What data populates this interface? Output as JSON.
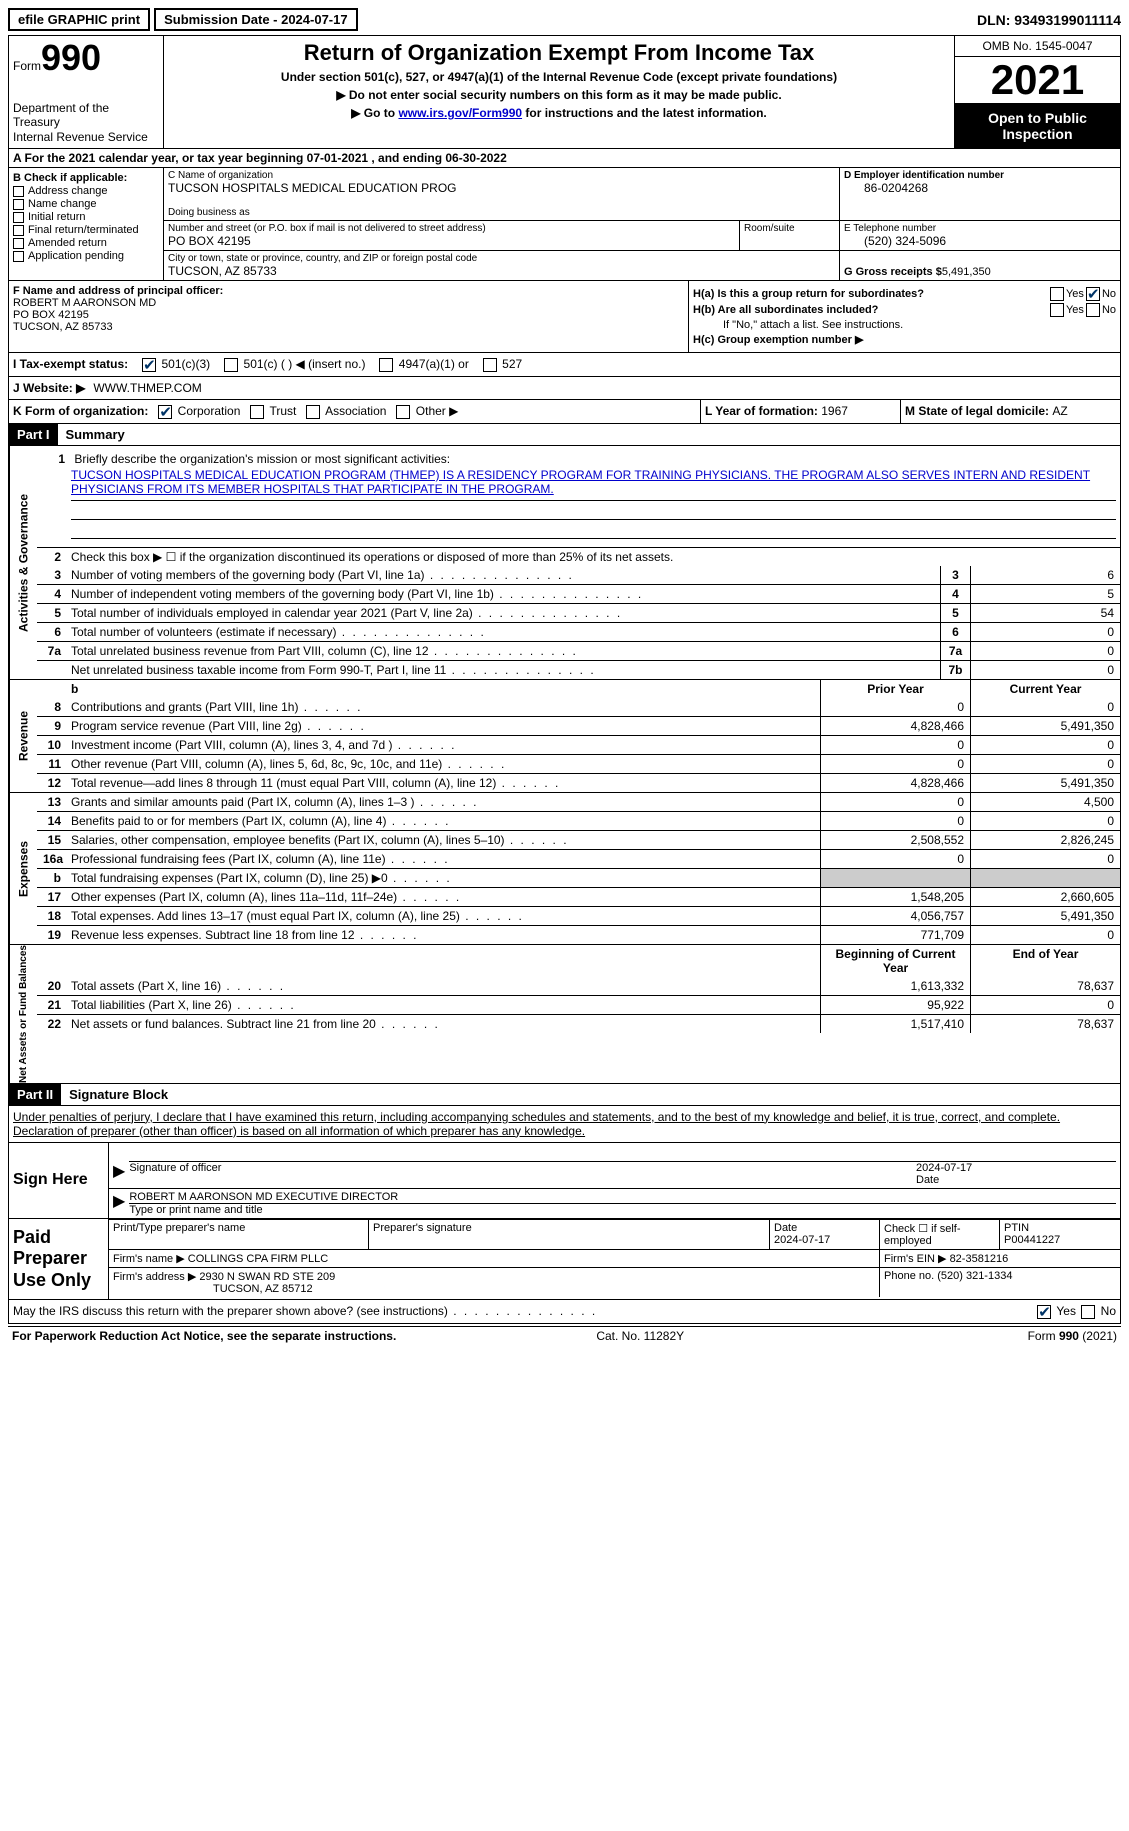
{
  "topbar": {
    "efile": "efile GRAPHIC print",
    "submission_label": "Submission Date - 2024-07-17",
    "dln_label": "DLN: 93493199011114"
  },
  "header": {
    "form_label": "Form",
    "form_number": "990",
    "dept": "Department of the Treasury\nInternal Revenue Service",
    "title": "Return of Organization Exempt From Income Tax",
    "subtitle": "Under section 501(c), 527, or 4947(a)(1) of the Internal Revenue Code (except private foundations)",
    "instr1": "▶ Do not enter social security numbers on this form as it may be made public.",
    "instr2_pre": "▶ Go to ",
    "instr2_link": "www.irs.gov/Form990",
    "instr2_post": " for instructions and the latest information.",
    "omb": "OMB No. 1545-0047",
    "year": "2021",
    "open": "Open to Public Inspection"
  },
  "section_a": "A For the 2021 calendar year, or tax year beginning 07-01-2021   , and ending 06-30-2022",
  "section_b": {
    "label": "B Check if applicable:",
    "items": [
      "Address change",
      "Name change",
      "Initial return",
      "Final return/terminated",
      "Amended return",
      "Application pending"
    ]
  },
  "section_c": {
    "name_label": "C Name of organization",
    "name": "TUCSON HOSPITALS MEDICAL EDUCATION PROG",
    "dba_label": "Doing business as",
    "dba": "",
    "street_label": "Number and street (or P.O. box if mail is not delivered to street address)",
    "street": "PO BOX 42195",
    "room_label": "Room/suite",
    "room": "",
    "city_label": "City or town, state or province, country, and ZIP or foreign postal code",
    "city": "TUCSON, AZ  85733"
  },
  "section_d": {
    "ein_label": "D Employer identification number",
    "ein": "86-0204268",
    "phone_label": "E Telephone number",
    "phone": "(520) 324-5096",
    "gross_label": "G Gross receipts $ ",
    "gross": "5,491,350"
  },
  "section_f": {
    "label": "F Name and address of principal officer:",
    "name": "ROBERT M AARONSON MD",
    "street": "PO BOX 42195",
    "city": "TUCSON, AZ  85733"
  },
  "section_h": {
    "ha_label": "H(a)  Is this a group return for subordinates?",
    "hb_label": "H(b)  Are all subordinates included?",
    "hb_note": "If \"No,\" attach a list. See instructions.",
    "hc_label": "H(c)  Group exemption number ▶",
    "yes": "Yes",
    "no": "No"
  },
  "section_i": {
    "label": "I    Tax-exempt status:",
    "opt1": "501(c)(3)",
    "opt2": "501(c) (   ) ◀ (insert no.)",
    "opt3": "4947(a)(1) or",
    "opt4": "527"
  },
  "section_j": {
    "label": "J   Website: ▶",
    "value": "WWW.THMEP.COM"
  },
  "section_k": {
    "label": "K Form of organization:",
    "opts": [
      "Corporation",
      "Trust",
      "Association",
      "Other ▶"
    ],
    "l_label": "L Year of formation: ",
    "l_value": "1967",
    "m_label": "M State of legal domicile: ",
    "m_value": "AZ"
  },
  "part1": {
    "hdr": "Part I",
    "title": "Summary",
    "line1_label": "Briefly describe the organization's mission or most significant activities:",
    "line1_text": "TUCSON HOSPITALS MEDICAL EDUCATION PROGRAM (THMEP) IS A RESIDENCY PROGRAM FOR TRAINING PHYSICIANS. THE PROGRAM ALSO SERVES INTERN AND RESIDENT PHYSICIANS FROM ITS MEMBER HOSPITALS THAT PARTICIPATE IN THE PROGRAM.",
    "line2": "Check this box ▶ ☐ if the organization discontinued its operations or disposed of more than 25% of its net assets.",
    "gov_label": "Activities & Governance",
    "rev_label": "Revenue",
    "exp_label": "Expenses",
    "net_label": "Net Assets or Fund Balances",
    "prior_hdr": "Prior Year",
    "current_hdr": "Current Year",
    "begin_hdr": "Beginning of Current Year",
    "end_hdr": "End of Year",
    "lines_gov": [
      {
        "n": "3",
        "t": "Number of voting members of the governing body (Part VI, line 1a)",
        "box": "3",
        "v": "6"
      },
      {
        "n": "4",
        "t": "Number of independent voting members of the governing body (Part VI, line 1b)",
        "box": "4",
        "v": "5"
      },
      {
        "n": "5",
        "t": "Total number of individuals employed in calendar year 2021 (Part V, line 2a)",
        "box": "5",
        "v": "54"
      },
      {
        "n": "6",
        "t": "Total number of volunteers (estimate if necessary)",
        "box": "6",
        "v": "0"
      },
      {
        "n": "7a",
        "t": "Total unrelated business revenue from Part VIII, column (C), line 12",
        "box": "7a",
        "v": "0"
      },
      {
        "n": "",
        "t": "Net unrelated business taxable income from Form 990-T, Part I, line 11",
        "box": "7b",
        "v": "0"
      }
    ],
    "lines_rev": [
      {
        "n": "8",
        "t": "Contributions and grants (Part VIII, line 1h)",
        "p": "0",
        "c": "0"
      },
      {
        "n": "9",
        "t": "Program service revenue (Part VIII, line 2g)",
        "p": "4,828,466",
        "c": "5,491,350"
      },
      {
        "n": "10",
        "t": "Investment income (Part VIII, column (A), lines 3, 4, and 7d )",
        "p": "0",
        "c": "0"
      },
      {
        "n": "11",
        "t": "Other revenue (Part VIII, column (A), lines 5, 6d, 8c, 9c, 10c, and 11e)",
        "p": "0",
        "c": "0"
      },
      {
        "n": "12",
        "t": "Total revenue—add lines 8 through 11 (must equal Part VIII, column (A), line 12)",
        "p": "4,828,466",
        "c": "5,491,350"
      }
    ],
    "lines_exp": [
      {
        "n": "13",
        "t": "Grants and similar amounts paid (Part IX, column (A), lines 1–3 )",
        "p": "0",
        "c": "4,500"
      },
      {
        "n": "14",
        "t": "Benefits paid to or for members (Part IX, column (A), line 4)",
        "p": "0",
        "c": "0"
      },
      {
        "n": "15",
        "t": "Salaries, other compensation, employee benefits (Part IX, column (A), lines 5–10)",
        "p": "2,508,552",
        "c": "2,826,245"
      },
      {
        "n": "16a",
        "t": "Professional fundraising fees (Part IX, column (A), line 11e)",
        "p": "0",
        "c": "0"
      },
      {
        "n": "b",
        "t": "Total fundraising expenses (Part IX, column (D), line 25) ▶0",
        "p": "grey",
        "c": "grey"
      },
      {
        "n": "17",
        "t": "Other expenses (Part IX, column (A), lines 11a–11d, 11f–24e)",
        "p": "1,548,205",
        "c": "2,660,605"
      },
      {
        "n": "18",
        "t": "Total expenses. Add lines 13–17 (must equal Part IX, column (A), line 25)",
        "p": "4,056,757",
        "c": "5,491,350"
      },
      {
        "n": "19",
        "t": "Revenue less expenses. Subtract line 18 from line 12",
        "p": "771,709",
        "c": "0"
      }
    ],
    "lines_net": [
      {
        "n": "20",
        "t": "Total assets (Part X, line 16)",
        "p": "1,613,332",
        "c": "78,637"
      },
      {
        "n": "21",
        "t": "Total liabilities (Part X, line 26)",
        "p": "95,922",
        "c": "0"
      },
      {
        "n": "22",
        "t": "Net assets or fund balances. Subtract line 21 from line 20",
        "p": "1,517,410",
        "c": "78,637"
      }
    ]
  },
  "part2": {
    "hdr": "Part II",
    "title": "Signature Block",
    "intro": "Under penalties of perjury, I declare that I have examined this return, including accompanying schedules and statements, and to the best of my knowledge and belief, it is true, correct, and complete. Declaration of preparer (other than officer) is based on all information of which preparer has any knowledge.",
    "sign_here": "Sign Here",
    "sig_officer": "Signature of officer",
    "sig_date": "2024-07-17",
    "date_label": "Date",
    "officer_name": "ROBERT M AARONSON MD  EXECUTIVE DIRECTOR",
    "officer_label": "Type or print name and title",
    "paid_prep": "Paid Preparer Use Only",
    "prep_name_label": "Print/Type preparer's name",
    "prep_name": "",
    "prep_sig_label": "Preparer's signature",
    "prep_date_label": "Date",
    "prep_date": "2024-07-17",
    "self_emp": "Check ☐ if self-employed",
    "ptin_label": "PTIN",
    "ptin": "P00441227",
    "firm_name_label": "Firm's name    ▶",
    "firm_name": "COLLINGS CPA FIRM PLLC",
    "firm_ein_label": "Firm's EIN ▶",
    "firm_ein": "82-3581216",
    "firm_addr_label": "Firm's address ▶",
    "firm_addr": "2930 N SWAN RD STE 209",
    "firm_city": "TUCSON, AZ  85712",
    "firm_phone_label": "Phone no. ",
    "firm_phone": "(520) 321-1334",
    "discuss": "May the IRS discuss this return with the preparer shown above? (see instructions)",
    "yes": "Yes",
    "no": "No"
  },
  "footer": {
    "note": "For Paperwork Reduction Act Notice, see the separate instructions.",
    "cat": "Cat. No. 11282Y",
    "form": "Form 990 (2021)"
  }
}
